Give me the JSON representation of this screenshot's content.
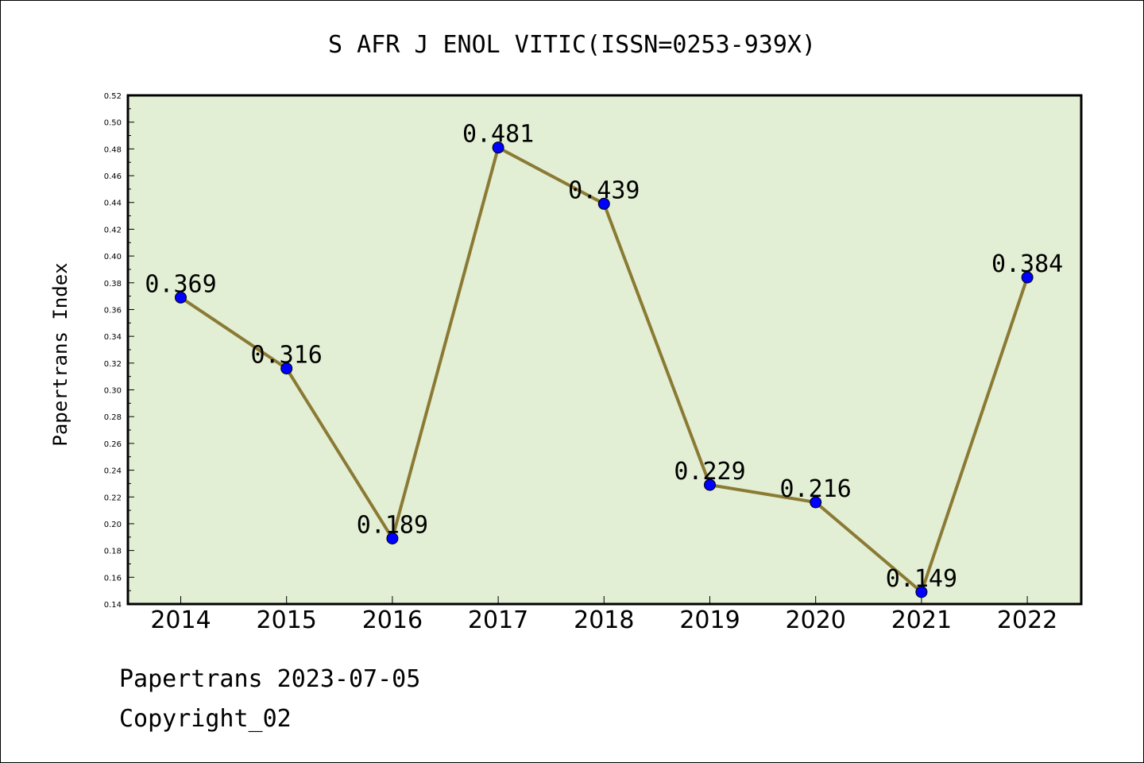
{
  "chart_data": {
    "type": "line",
    "title": "S AFR J ENOL VITIC(ISSN=0253-939X)",
    "xlabel": "",
    "ylabel": "Papertrans Index",
    "categories": [
      "2014",
      "2015",
      "2016",
      "2017",
      "2018",
      "2019",
      "2020",
      "2021",
      "2022"
    ],
    "values": [
      0.369,
      0.316,
      0.189,
      0.481,
      0.439,
      0.229,
      0.216,
      0.149,
      0.384
    ],
    "data_labels": [
      "0.369",
      "0.316",
      "0.189",
      "0.481",
      "0.439",
      "0.229",
      "0.216",
      "0.149",
      "0.384"
    ],
    "ylim": [
      0.14,
      0.52
    ],
    "yticks": [
      "0.14",
      "0.16",
      "0.18",
      "0.20",
      "0.22",
      "0.24",
      "0.26",
      "0.28",
      "0.30",
      "0.32",
      "0.34",
      "0.36",
      "0.38",
      "0.40",
      "0.42",
      "0.44",
      "0.46",
      "0.48",
      "0.50",
      "0.52"
    ],
    "grid": false,
    "colors": {
      "plot_background": "#e2efd4",
      "line": "#8b7a34",
      "marker": "#0000ff"
    }
  },
  "footer": {
    "line1": "Papertrans 2023-07-05",
    "line2": "Copyright_02"
  }
}
